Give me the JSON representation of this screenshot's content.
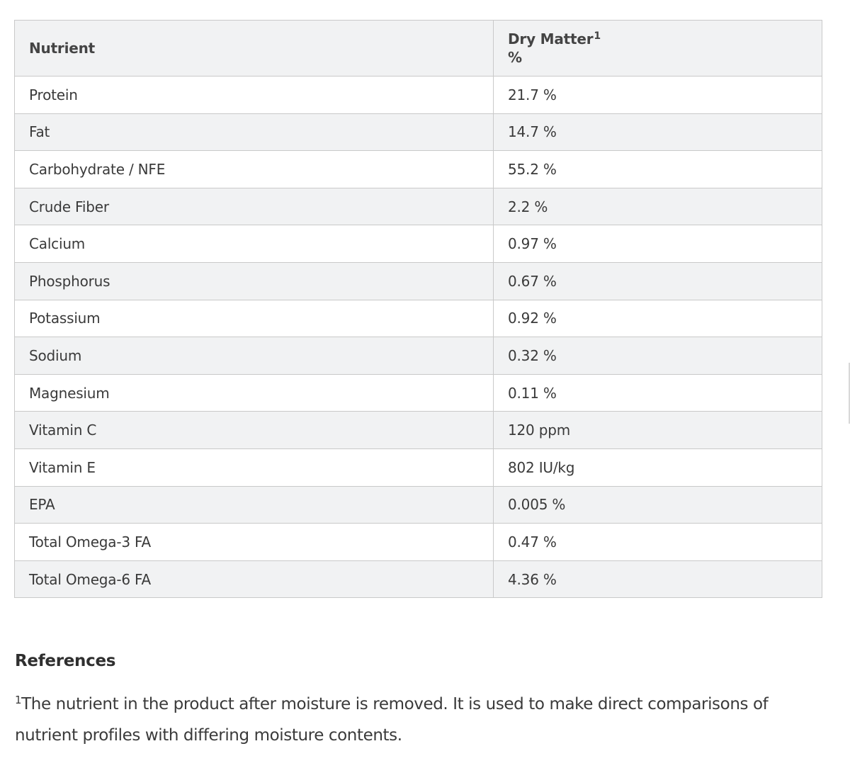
{
  "table": {
    "header": {
      "nutrient": "Nutrient",
      "dry_matter": "Dry Matter",
      "dry_matter_sup": "1",
      "dry_matter_unit": "%"
    },
    "rows": [
      {
        "nutrient": "Protein",
        "value": "21.7 %"
      },
      {
        "nutrient": "Fat",
        "value": "14.7 %"
      },
      {
        "nutrient": "Carbohydrate / NFE",
        "value": "55.2 %"
      },
      {
        "nutrient": "Crude Fiber",
        "value": "2.2 %"
      },
      {
        "nutrient": "Calcium",
        "value": "0.97 %"
      },
      {
        "nutrient": "Phosphorus",
        "value": "0.67 %"
      },
      {
        "nutrient": "Potassium",
        "value": "0.92 %"
      },
      {
        "nutrient": "Sodium",
        "value": "0.32 %"
      },
      {
        "nutrient": "Magnesium",
        "value": "0.11 %"
      },
      {
        "nutrient": "Vitamin C",
        "value": "120 ppm"
      },
      {
        "nutrient": "Vitamin E",
        "value": "802 IU/kg"
      },
      {
        "nutrient": "EPA",
        "value": "0.005 %"
      },
      {
        "nutrient": "Total Omega-3 FA",
        "value": "0.47 %"
      },
      {
        "nutrient": "Total Omega-6 FA",
        "value": "4.36 %"
      }
    ]
  },
  "references": {
    "heading": "References",
    "note_marker": "1",
    "note_text": "The nutrient in the product after moisture is removed. It is used to make direct comparisons of nutrient profiles with differing moisture contents."
  }
}
